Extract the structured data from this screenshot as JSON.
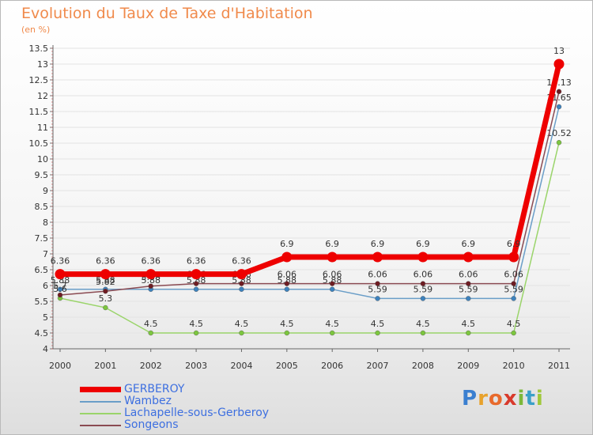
{
  "chart_data": {
    "type": "line",
    "title": "Evolution du Taux de Taxe d'Habitation",
    "subtitle": "(en %)",
    "x": [
      "2000",
      "2001",
      "2002",
      "2003",
      "2004",
      "2005",
      "2006",
      "2007",
      "2008",
      "2009",
      "2010",
      "2011"
    ],
    "ylim": [
      4,
      13.5
    ],
    "yticks": [
      "4",
      "4.5",
      "5",
      "5.5",
      "6",
      "6.5",
      "7",
      "7.5",
      "8",
      "8.5",
      "9",
      "9.5",
      "10",
      "10.5",
      "11",
      "11.5",
      "12",
      "12.5",
      "13",
      "13.5"
    ],
    "series": [
      {
        "name": "Wambez",
        "color": "#6a9ec8",
        "marker_color": "#3d82bd",
        "values": [
          5.88,
          5.88,
          5.88,
          5.88,
          5.88,
          5.88,
          5.88,
          5.59,
          5.59,
          5.59,
          5.59,
          11.65
        ],
        "labels": [
          "5.88",
          "5.88",
          "5.88",
          "5.88",
          "5.88",
          "5.88",
          "5.88",
          "5.59",
          "5.59",
          "5.59",
          "5.59",
          "11.65"
        ]
      },
      {
        "name": "Lachapelle-sous-Gerberoy",
        "color": "#9ad46a",
        "marker_color": "#7cc63e",
        "values": [
          5.6,
          5.3,
          4.5,
          4.5,
          4.5,
          4.5,
          4.5,
          4.5,
          4.5,
          4.5,
          4.5,
          10.52
        ],
        "labels": [
          "5.6",
          "5.3",
          "4.5",
          "4.5",
          "4.5",
          "4.5",
          "4.5",
          "4.5",
          "4.5",
          "4.5",
          "4.5",
          "10.52"
        ]
      },
      {
        "name": "Songeons",
        "color": "#8a4a52",
        "marker_color": "#6e1c22",
        "values": [
          5.7,
          5.82,
          5.98,
          6.06,
          6.06,
          6.06,
          6.06,
          6.06,
          6.06,
          6.06,
          6.06,
          12.13
        ],
        "labels": [
          "5.7",
          "5.82",
          "5.98",
          "6.06",
          "6.06",
          "6.06",
          "6.06",
          "6.06",
          "6.06",
          "6.06",
          "6.06",
          "12.13"
        ]
      },
      {
        "name": "GERBEROY",
        "color": "#ee0000",
        "marker_color": "#ee0000",
        "values": [
          6.36,
          6.36,
          6.36,
          6.36,
          6.36,
          6.9,
          6.9,
          6.9,
          6.9,
          6.9,
          6.9,
          13
        ],
        "labels": [
          "6.36",
          "6.36",
          "6.36",
          "6.36",
          "6.36",
          "6.9",
          "6.9",
          "6.9",
          "6.9",
          "6.9",
          "6.9",
          "13"
        ]
      }
    ],
    "legend": [
      "GERBEROY",
      "Wambez",
      "Lachapelle-sous-Gerberoy",
      "Songeons"
    ],
    "legend_colors": [
      "#ee0000",
      "#6a9ec8",
      "#9ad46a",
      "#8a4a52"
    ]
  },
  "logo": [
    "P",
    "r",
    "o",
    "x",
    "i",
    "t",
    "i"
  ]
}
